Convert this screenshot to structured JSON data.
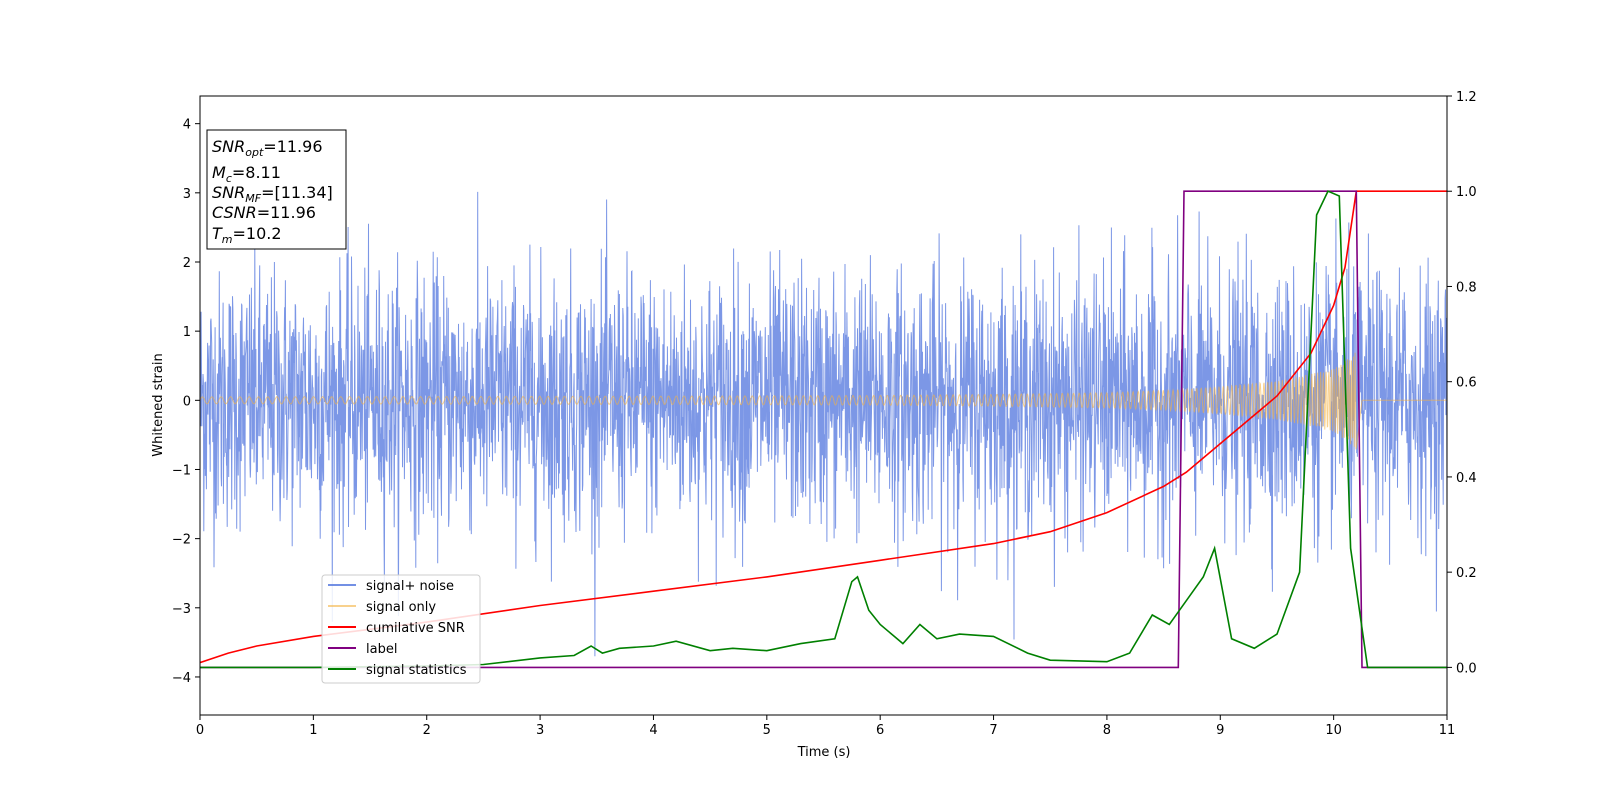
{
  "chart_data": {
    "type": "line",
    "xlabel": "Time (s)",
    "ylabel": "Whitened strain",
    "xlim": [
      0,
      11
    ],
    "ylim_left": [
      -4.55,
      4.4
    ],
    "ylim_right": [
      -0.1,
      1.2
    ],
    "grid": false,
    "legend_position": "lower-left",
    "x_ticks": [
      "0",
      "1",
      "2",
      "3",
      "4",
      "5",
      "6",
      "7",
      "8",
      "9",
      "10",
      "11"
    ],
    "y_ticks_left": [
      "−4",
      "−3",
      "−2",
      "−1",
      "0",
      "1",
      "2",
      "3",
      "4"
    ],
    "y_ticks_right": [
      "0.0",
      "0.2",
      "0.4",
      "0.6",
      "0.8",
      "1.0",
      "1.2"
    ],
    "annotation": {
      "snr_opt": {
        "base": "SNR",
        "sub": "opt",
        "value": "=11.96"
      },
      "mc": {
        "base": "M",
        "sub": "c",
        "value": "=8.11"
      },
      "snr_mf": {
        "base": "SNR",
        "sub": "MF",
        "value": "=[11.34]"
      },
      "csnr": {
        "base": "CSNR",
        "sub": "",
        "value": "=11.96"
      },
      "tm": {
        "base": "T",
        "sub": "m",
        "value": "=10.2"
      }
    },
    "series": [
      {
        "name": "signal+ noise",
        "color": "#5b7de0",
        "axis": "left",
        "note": "noise std ~0.9 over 0–11 s"
      },
      {
        "name": "signal only",
        "color": "#f5b342",
        "axis": "left",
        "envelope": {
          "t": [
            0,
            2,
            4,
            6,
            7,
            8,
            8.6,
            9.0,
            9.5,
            10.0,
            10.2,
            10.25
          ],
          "amp": [
            0.05,
            0.055,
            0.06,
            0.07,
            0.085,
            0.11,
            0.15,
            0.2,
            0.28,
            0.45,
            0.7,
            0
          ]
        }
      },
      {
        "name": "cumilative SNR",
        "color": "#ff0000",
        "axis": "right",
        "x": [
          0,
          0.25,
          0.5,
          1,
          1.5,
          2,
          3,
          4,
          5,
          6,
          7,
          7.5,
          8,
          8.5,
          8.7,
          9,
          9.5,
          9.8,
          10,
          10.1,
          10.2,
          11
        ],
        "y": [
          0.01,
          0.03,
          0.045,
          0.065,
          0.08,
          0.095,
          0.13,
          0.16,
          0.19,
          0.225,
          0.26,
          0.285,
          0.325,
          0.38,
          0.41,
          0.47,
          0.57,
          0.66,
          0.76,
          0.84,
          1.0,
          1.0
        ]
      },
      {
        "name": "label",
        "color": "#800080",
        "axis": "right",
        "x": [
          0,
          8.63,
          8.68,
          10.2,
          10.25,
          11
        ],
        "y": [
          0,
          0,
          1,
          1,
          0,
          0
        ]
      },
      {
        "name": "signal statistics",
        "color": "#008000",
        "axis": "right",
        "x": [
          0,
          1,
          2,
          2.5,
          3,
          3.3,
          3.45,
          3.55,
          3.7,
          4,
          4.2,
          4.5,
          4.7,
          5,
          5.3,
          5.6,
          5.75,
          5.8,
          5.9,
          6,
          6.2,
          6.35,
          6.5,
          6.7,
          7,
          7.3,
          7.5,
          8,
          8.2,
          8.4,
          8.55,
          8.7,
          8.85,
          8.95,
          9.1,
          9.3,
          9.5,
          9.7,
          9.85,
          9.95,
          10.05,
          10.15,
          10.3,
          11
        ],
        "y": [
          0,
          0,
          0.003,
          0.006,
          0.02,
          0.025,
          0.045,
          0.03,
          0.04,
          0.045,
          0.055,
          0.035,
          0.04,
          0.035,
          0.05,
          0.06,
          0.18,
          0.19,
          0.12,
          0.09,
          0.05,
          0.09,
          0.06,
          0.07,
          0.065,
          0.03,
          0.015,
          0.012,
          0.03,
          0.11,
          0.09,
          0.14,
          0.19,
          0.25,
          0.06,
          0.04,
          0.07,
          0.2,
          0.95,
          1.0,
          0.99,
          0.25,
          0.0,
          0.0
        ]
      }
    ]
  }
}
